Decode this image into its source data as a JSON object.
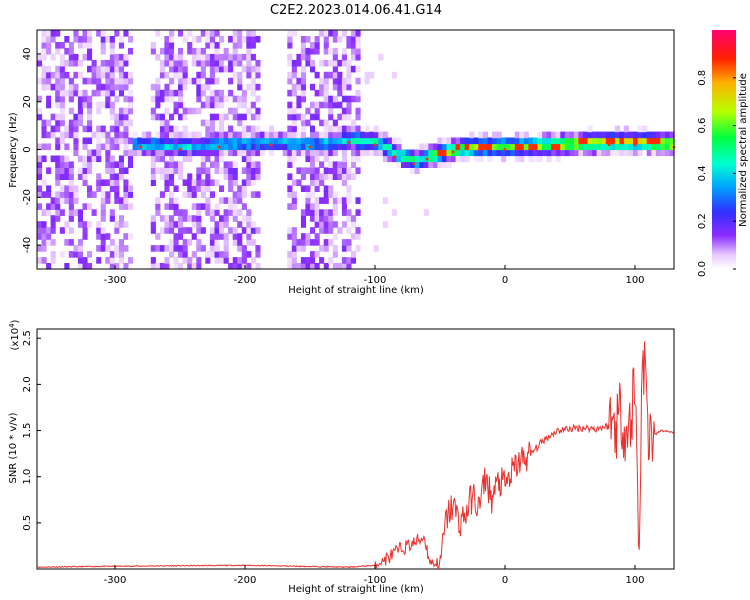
{
  "title": "C2E2.2023.014.06.41.G14",
  "colors": {
    "snr_line": "#e8302c",
    "colormap": [
      "#ffffff",
      "#e6c8ff",
      "#c07aff",
      "#7a1cff",
      "#3030ff",
      "#00c0ff",
      "#00ff60",
      "#c8ff00",
      "#ff8000",
      "#ff0000",
      "#ff0040"
    ]
  },
  "chart_data": [
    {
      "type": "heatmap",
      "title": "",
      "xlabel": "Height of straight line (km)",
      "ylabel": "Frequency (Hz)",
      "xlim": [
        -360,
        130
      ],
      "ylim": [
        -50,
        50
      ],
      "x_ticks": [
        "-300",
        "-200",
        "-100",
        "0",
        "100"
      ],
      "y_ticks": [
        "-40",
        "-20",
        "0",
        "20",
        "40"
      ],
      "colorbar": {
        "label": "Normalized spectral amplitude",
        "range": [
          0,
          1
        ],
        "ticks": [
          "0.0",
          "0.2",
          "0.4",
          "0.6",
          "0.8"
        ]
      },
      "ridge": {
        "x": [
          -280,
          -250,
          -220,
          -180,
          -150,
          -120,
          -100,
          -85,
          -70,
          -60,
          -40,
          -20,
          0,
          40,
          80,
          100,
          130
        ],
        "frequency": [
          1,
          0,
          1,
          2,
          1,
          3,
          2,
          -3,
          -6,
          -4,
          -1,
          0,
          0,
          1,
          2,
          2,
          1
        ]
      }
    },
    {
      "type": "line",
      "title": "",
      "xlabel": "Height of straight line (km)",
      "ylabel": "SNR (10 * v/v)",
      "y_scale_label": "(x10",
      "y_scale_exponent": "4",
      "xlim": [
        -360,
        130
      ],
      "ylim": [
        0,
        2.6
      ],
      "x_ticks": [
        "-300",
        "-200",
        "-100",
        "0",
        "100"
      ],
      "y_ticks": [
        "0.5",
        "1.0",
        "1.5",
        "2.0",
        "2.5"
      ],
      "series": [
        {
          "name": "",
          "x": [
            -360,
            -300,
            -200,
            -120,
            -100,
            -90,
            -80,
            -70,
            -62,
            -58,
            -50,
            -45,
            -40,
            -35,
            -30,
            -25,
            -20,
            -15,
            -10,
            -5,
            0,
            10,
            20,
            30,
            40,
            50,
            60,
            70,
            80,
            85,
            90,
            95,
            100,
            103,
            106,
            110,
            115,
            120,
            130
          ],
          "y": [
            0.02,
            0.03,
            0.04,
            0.02,
            0.04,
            0.12,
            0.22,
            0.28,
            0.35,
            0.08,
            0.05,
            0.55,
            0.7,
            0.5,
            0.6,
            0.8,
            0.65,
            1.0,
            0.75,
            0.95,
            0.9,
            1.15,
            1.25,
            1.4,
            1.5,
            1.52,
            1.53,
            1.52,
            1.55,
            1.6,
            1.7,
            1.4,
            2.05,
            0.2,
            2.5,
            1.5,
            1.45,
            1.5,
            1.48
          ]
        }
      ]
    }
  ]
}
